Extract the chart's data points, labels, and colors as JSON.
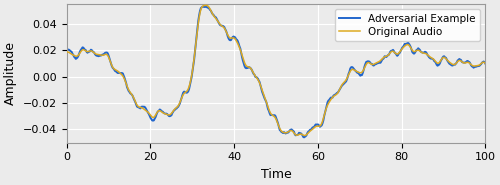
{
  "title": "",
  "xlabel": "Time",
  "ylabel": "Amplitude",
  "xlim": [
    0,
    100
  ],
  "ylim": [
    -0.05,
    0.055
  ],
  "yticks": [
    -0.04,
    -0.02,
    0.0,
    0.02,
    0.04
  ],
  "xticks": [
    0,
    20,
    40,
    60,
    80,
    100
  ],
  "legend_labels": [
    "Adversarial Example",
    "Original Audio"
  ],
  "adversarial_color": "#2266cc",
  "original_color": "#ddaa22",
  "background_color": "#ebebeb",
  "linewidth_adv": 1.4,
  "linewidth_orig": 1.1,
  "figsize": [
    5.0,
    1.85
  ],
  "dpi": 100,
  "key_points_x": [
    0,
    5,
    10,
    15,
    18,
    22,
    25,
    28,
    30,
    32,
    35,
    38,
    40,
    43,
    46,
    50,
    53,
    55,
    58,
    60,
    62,
    65,
    68,
    70,
    72,
    75,
    78,
    80,
    82,
    85,
    88,
    90,
    93,
    96,
    100
  ],
  "key_points_y": [
    0.016,
    0.019,
    0.013,
    -0.01,
    -0.025,
    -0.028,
    -0.027,
    -0.015,
    0.005,
    0.048,
    0.047,
    0.035,
    0.028,
    0.01,
    -0.005,
    -0.035,
    -0.042,
    -0.044,
    -0.042,
    -0.038,
    -0.025,
    -0.01,
    0.003,
    0.005,
    0.008,
    0.013,
    0.018,
    0.021,
    0.022,
    0.018,
    0.013,
    0.012,
    0.011,
    0.01,
    0.008
  ]
}
